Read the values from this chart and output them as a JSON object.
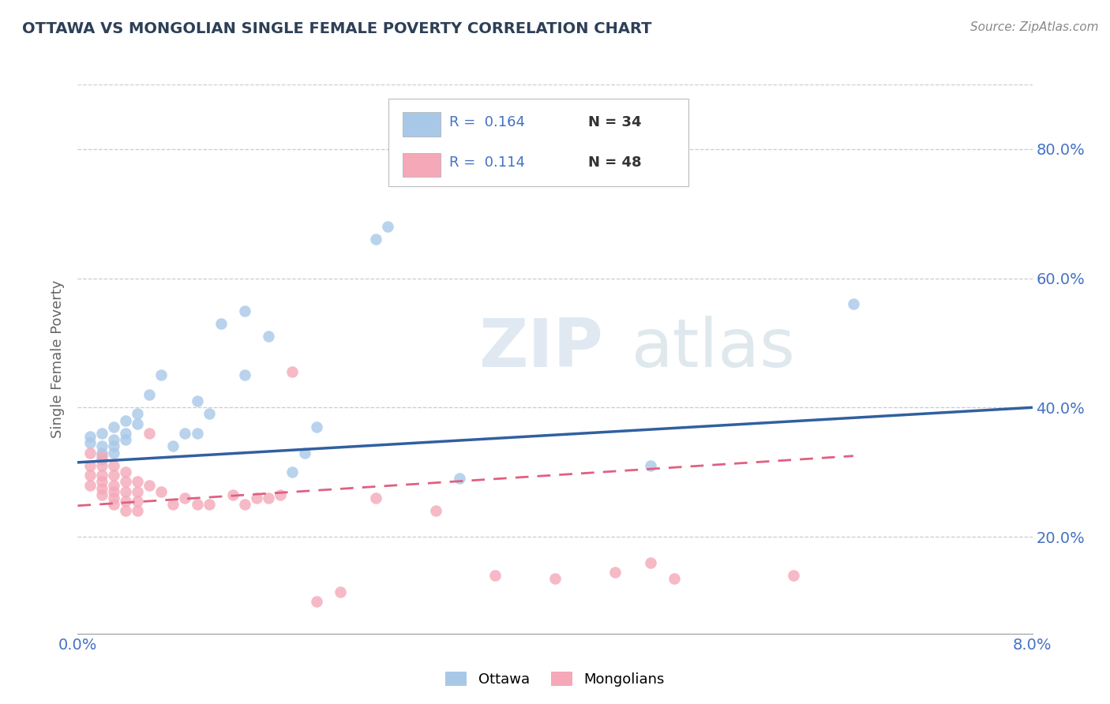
{
  "title": "OTTAWA VS MONGOLIAN SINGLE FEMALE POVERTY CORRELATION CHART",
  "source": "Source: ZipAtlas.com",
  "ylabel": "Single Female Poverty",
  "xlim": [
    0.0,
    0.08
  ],
  "ylim": [
    0.05,
    0.9
  ],
  "yticks": [
    0.2,
    0.4,
    0.6,
    0.8
  ],
  "ytick_labels": [
    "20.0%",
    "40.0%",
    "60.0%",
    "80.0%"
  ],
  "xticks": [
    0.0,
    0.08
  ],
  "xtick_labels": [
    "0.0%",
    "8.0%"
  ],
  "legend_r_ottawa": "0.164",
  "legend_n_ottawa": "34",
  "legend_r_mongolian": "0.114",
  "legend_n_mongolian": "48",
  "ottawa_color": "#a8c8e8",
  "mongolian_color": "#f4a8b8",
  "ottawa_line_color": "#3060a0",
  "mongolian_line_color": "#e06080",
  "background_color": "#ffffff",
  "watermark_zip": "ZIP",
  "watermark_atlas": "atlas",
  "title_color": "#2e4057",
  "axis_label_color": "#666666",
  "tick_color": "#4472c4",
  "grid_color": "#cccccc",
  "ottawa_scatter": [
    [
      0.001,
      0.355
    ],
    [
      0.001,
      0.345
    ],
    [
      0.002,
      0.36
    ],
    [
      0.002,
      0.34
    ],
    [
      0.002,
      0.33
    ],
    [
      0.002,
      0.32
    ],
    [
      0.003,
      0.37
    ],
    [
      0.003,
      0.35
    ],
    [
      0.003,
      0.34
    ],
    [
      0.003,
      0.33
    ],
    [
      0.004,
      0.38
    ],
    [
      0.004,
      0.36
    ],
    [
      0.004,
      0.35
    ],
    [
      0.005,
      0.39
    ],
    [
      0.005,
      0.375
    ],
    [
      0.006,
      0.42
    ],
    [
      0.007,
      0.45
    ],
    [
      0.008,
      0.34
    ],
    [
      0.009,
      0.36
    ],
    [
      0.01,
      0.36
    ],
    [
      0.01,
      0.41
    ],
    [
      0.011,
      0.39
    ],
    [
      0.012,
      0.53
    ],
    [
      0.014,
      0.45
    ],
    [
      0.014,
      0.55
    ],
    [
      0.016,
      0.51
    ],
    [
      0.018,
      0.3
    ],
    [
      0.019,
      0.33
    ],
    [
      0.02,
      0.37
    ],
    [
      0.025,
      0.66
    ],
    [
      0.026,
      0.68
    ],
    [
      0.032,
      0.29
    ],
    [
      0.048,
      0.31
    ],
    [
      0.065,
      0.56
    ]
  ],
  "mongolian_scatter": [
    [
      0.001,
      0.33
    ],
    [
      0.001,
      0.31
    ],
    [
      0.001,
      0.295
    ],
    [
      0.001,
      0.28
    ],
    [
      0.002,
      0.325
    ],
    [
      0.002,
      0.31
    ],
    [
      0.002,
      0.295
    ],
    [
      0.002,
      0.285
    ],
    [
      0.002,
      0.275
    ],
    [
      0.002,
      0.265
    ],
    [
      0.003,
      0.31
    ],
    [
      0.003,
      0.295
    ],
    [
      0.003,
      0.28
    ],
    [
      0.003,
      0.27
    ],
    [
      0.003,
      0.26
    ],
    [
      0.003,
      0.25
    ],
    [
      0.004,
      0.3
    ],
    [
      0.004,
      0.285
    ],
    [
      0.004,
      0.27
    ],
    [
      0.004,
      0.255
    ],
    [
      0.004,
      0.24
    ],
    [
      0.005,
      0.285
    ],
    [
      0.005,
      0.27
    ],
    [
      0.005,
      0.255
    ],
    [
      0.005,
      0.24
    ],
    [
      0.006,
      0.36
    ],
    [
      0.006,
      0.28
    ],
    [
      0.007,
      0.27
    ],
    [
      0.008,
      0.25
    ],
    [
      0.009,
      0.26
    ],
    [
      0.01,
      0.25
    ],
    [
      0.011,
      0.25
    ],
    [
      0.013,
      0.265
    ],
    [
      0.014,
      0.25
    ],
    [
      0.015,
      0.26
    ],
    [
      0.016,
      0.26
    ],
    [
      0.017,
      0.265
    ],
    [
      0.018,
      0.455
    ],
    [
      0.02,
      0.1
    ],
    [
      0.022,
      0.115
    ],
    [
      0.025,
      0.26
    ],
    [
      0.03,
      0.24
    ],
    [
      0.035,
      0.14
    ],
    [
      0.04,
      0.135
    ],
    [
      0.045,
      0.145
    ],
    [
      0.048,
      0.16
    ],
    [
      0.05,
      0.135
    ],
    [
      0.06,
      0.14
    ]
  ]
}
